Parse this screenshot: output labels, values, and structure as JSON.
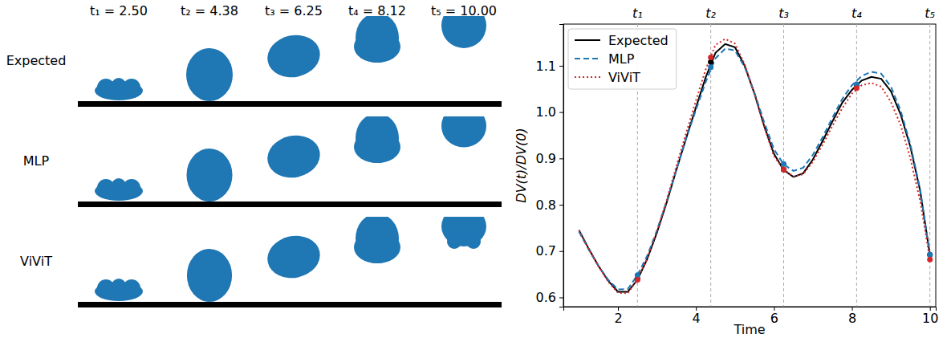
{
  "snapshots": {
    "row_labels": [
      "Expected",
      "MLP",
      "ViViT"
    ],
    "column_labels": [
      "t₁ = 2.50",
      "t₂ = 4.38",
      "t₃ = 6.25",
      "t₄ = 8.12",
      "t₅ = 10.00"
    ]
  },
  "chart_data": {
    "type": "line",
    "x_label": "Time",
    "y_label": "DV(t)/DV(0)",
    "xlim": [
      0.6,
      10.15
    ],
    "ylim": [
      0.58,
      1.19
    ],
    "xticks": [
      2,
      4,
      6,
      8,
      10
    ],
    "yticks": [
      0.6,
      0.7,
      0.8,
      0.9,
      {
        "value": 1,
        "label": "1.0"
      },
      1.1
    ],
    "legend": "upper left",
    "snapshot_times": [
      2.5,
      4.38,
      6.25,
      8.12,
      10
    ],
    "snapshot_labels": [
      "t₁",
      "t₂",
      "t₃",
      "t₄",
      "t₅"
    ],
    "x": [
      1,
      1.25,
      1.5,
      1.75,
      2,
      2.25,
      2.5,
      2.75,
      3,
      3.25,
      3.5,
      3.75,
      4,
      4.25,
      4.5,
      4.75,
      5,
      5.25,
      5.5,
      5.75,
      6,
      6.25,
      6.5,
      6.75,
      7,
      7.25,
      7.5,
      7.75,
      8,
      8.25,
      8.5,
      8.75,
      9,
      9.25,
      9.5,
      9.75,
      10
    ],
    "series": [
      {
        "name": "Expected",
        "color": "#000000",
        "line_style": "solid",
        "values": [
          0.745,
          0.705,
          0.668,
          0.636,
          0.612,
          0.612,
          0.638,
          0.683,
          0.74,
          0.805,
          0.876,
          0.944,
          1.01,
          1.075,
          1.128,
          1.147,
          1.14,
          1.1,
          1.04,
          0.97,
          0.91,
          0.875,
          0.86,
          0.868,
          0.898,
          0.938,
          0.98,
          1.02,
          1.048,
          1.068,
          1.076,
          1.072,
          1.045,
          0.995,
          0.925,
          0.83,
          0.692
        ],
        "snapshot_values": [
          0.64,
          1.108,
          0.876,
          1.058,
          0.692
        ]
      },
      {
        "name": "MLP",
        "color": "#1f77b4",
        "line_style": "dashed",
        "values": [
          0.742,
          0.703,
          0.668,
          0.638,
          0.617,
          0.618,
          0.648,
          0.69,
          0.745,
          0.808,
          0.876,
          0.943,
          1.005,
          1.065,
          1.116,
          1.137,
          1.133,
          1.097,
          1.042,
          0.978,
          0.92,
          0.887,
          0.873,
          0.88,
          0.908,
          0.946,
          0.988,
          1.028,
          1.058,
          1.078,
          1.087,
          1.083,
          1.055,
          1.003,
          0.93,
          0.833,
          0.692
        ],
        "snapshot_values": [
          0.648,
          1.097,
          0.888,
          1.06,
          0.692
        ]
      },
      {
        "name": "ViViT",
        "color": "#d62728",
        "line_style": "dotted",
        "values": [
          0.745,
          0.705,
          0.667,
          0.634,
          0.61,
          0.609,
          0.638,
          0.684,
          0.743,
          0.81,
          0.884,
          0.955,
          1.025,
          1.092,
          1.145,
          1.158,
          1.148,
          1.103,
          1.04,
          0.968,
          0.905,
          0.876,
          0.861,
          0.866,
          0.893,
          0.93,
          0.97,
          1.008,
          1.04,
          1.058,
          1.063,
          1.055,
          1.022,
          0.972,
          0.9,
          0.808,
          0.682
        ],
        "snapshot_values": [
          0.638,
          1.118,
          0.876,
          1.052,
          0.682
        ]
      }
    ]
  }
}
